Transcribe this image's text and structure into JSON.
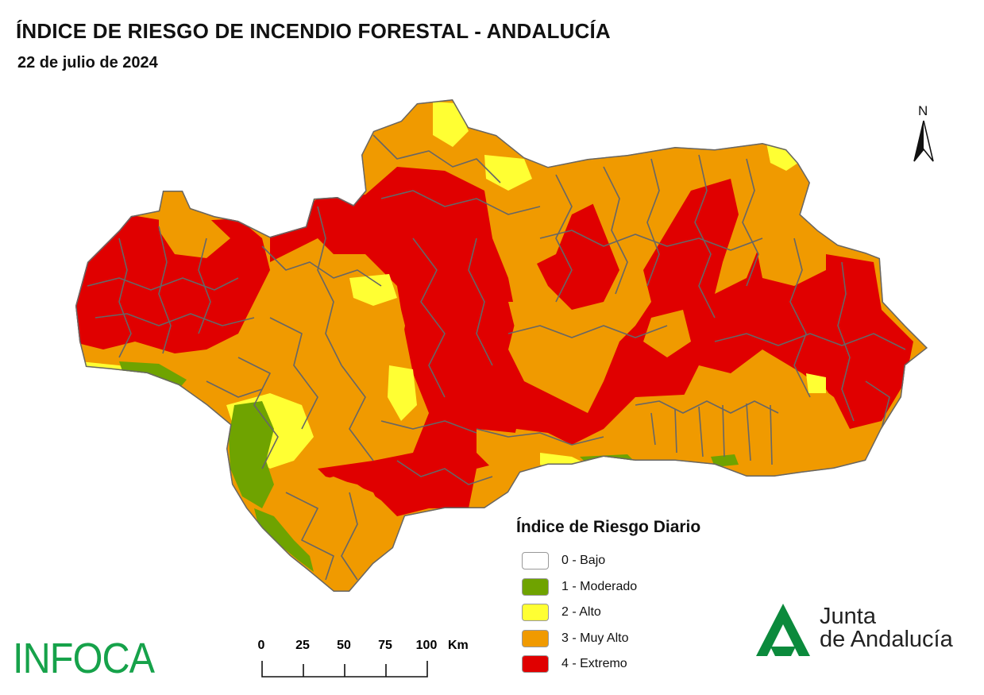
{
  "header": {
    "title": "ÍNDICE DE RIESGO DE INCENDIO FORESTAL - ANDALUCÍA",
    "date": "22 de julio de 2024"
  },
  "north_arrow": {
    "label": "N"
  },
  "legend": {
    "title": "Índice de Riesgo Diario",
    "items": [
      {
        "label": "0 - Bajo",
        "color": "#ffffff"
      },
      {
        "label": "1 - Moderado",
        "color": "#6fa300"
      },
      {
        "label": "2 - Alto",
        "color": "#ffff33"
      },
      {
        "label": "3 - Muy Alto",
        "color": "#f09a00"
      },
      {
        "label": "4 - Extremo",
        "color": "#e00000"
      }
    ]
  },
  "scale_bar": {
    "ticks": [
      "0",
      "25",
      "50",
      "75",
      "100"
    ],
    "unit": "Km"
  },
  "logos": {
    "infoca": "INFOCA",
    "junta_line1": "Junta",
    "junta_line2": "de Andalucía"
  },
  "map_colors": {
    "extremo": "#e00000",
    "muy_alto": "#f09a00",
    "alto": "#ffff33",
    "moderado": "#6fa300",
    "boundaries": "#666666"
  }
}
